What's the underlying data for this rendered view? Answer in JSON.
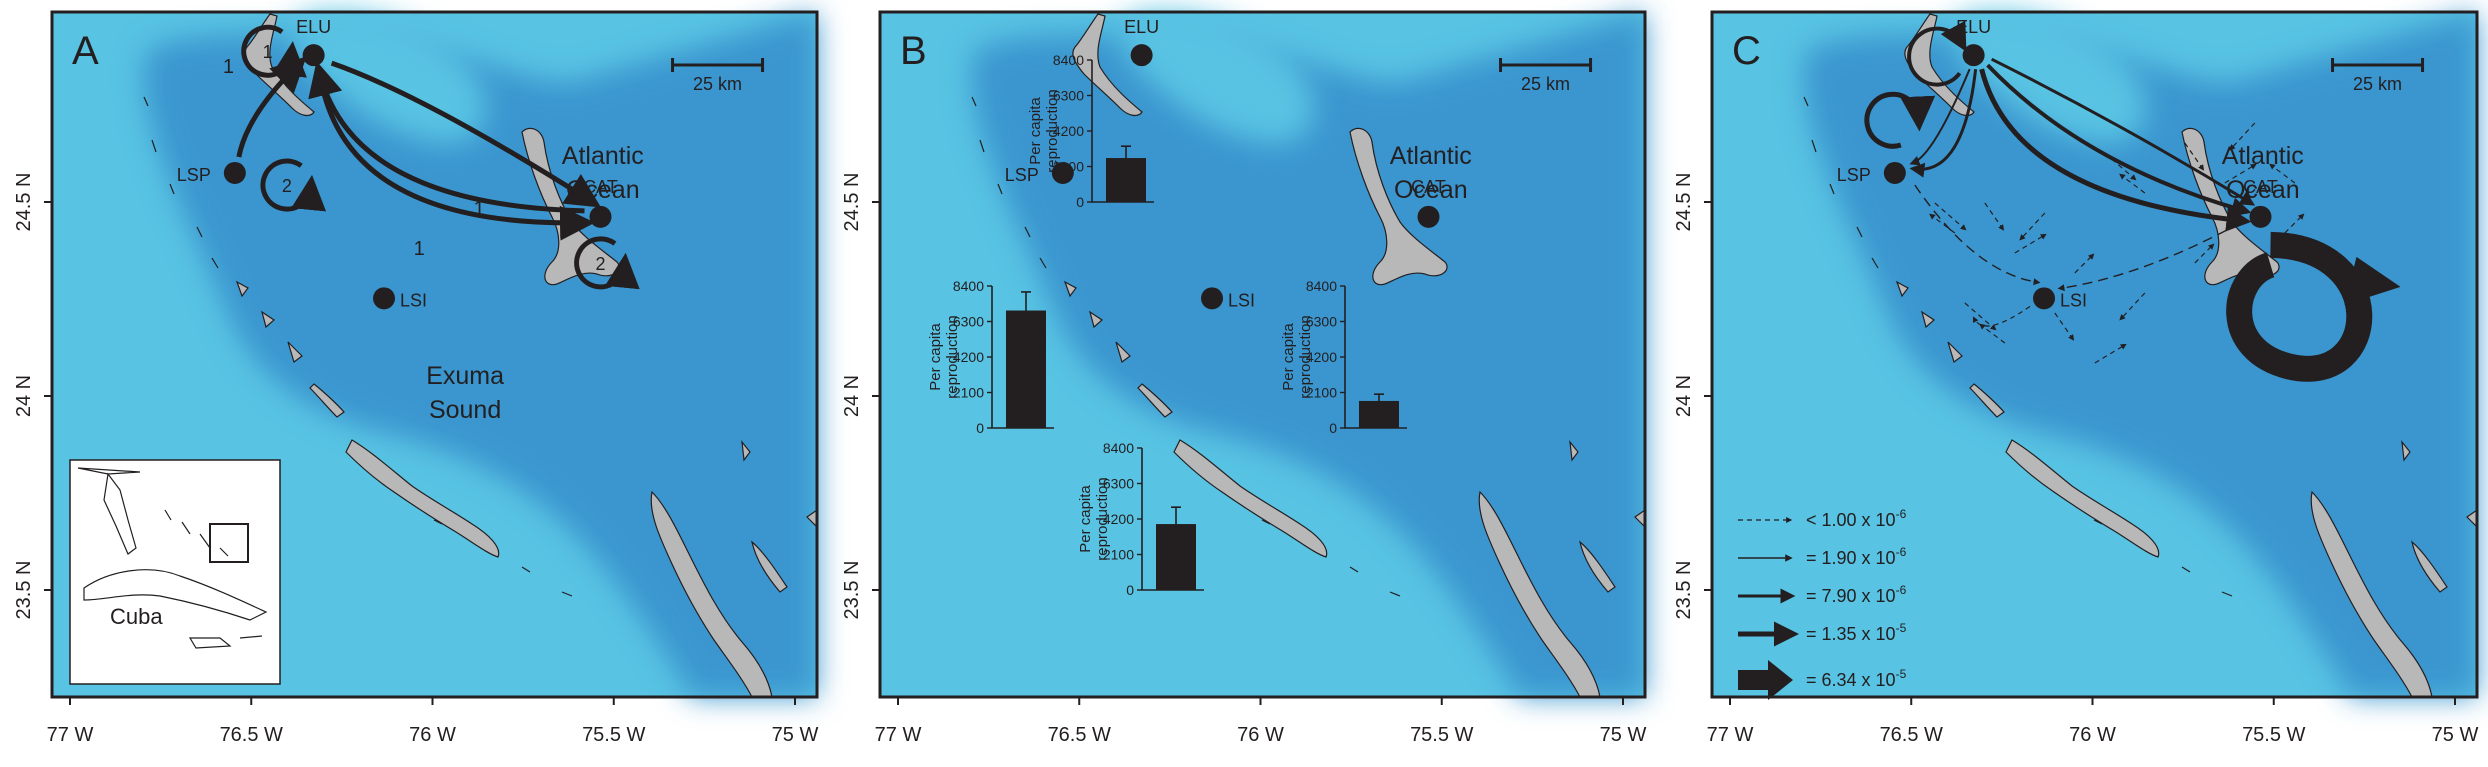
{
  "panels": [
    {
      "letter": "A",
      "ocean_label": [
        "Atlantic",
        "Ocean"
      ],
      "sound_label": [
        "Exuma",
        "Sound"
      ],
      "scale_label": "25 km",
      "inset_label": "Cuba",
      "self_loop_labels": {
        "ELU": "1",
        "LSP": "2",
        "CAT": "2"
      },
      "edge_labels": {
        "LSP_ELU": "1",
        "CAT_ELU_upper": "1",
        "CAT_ELU_lower": "1"
      }
    },
    {
      "letter": "B",
      "ocean_label": [
        "Atlantic",
        "Ocean"
      ],
      "scale_label": "25 km",
      "bar_axis_title": [
        "Per capita",
        "reproduction"
      ],
      "bar_ticks": [
        "0",
        "2100",
        "4200",
        "6300",
        "8400"
      ],
      "bars": {
        "ELU": {
          "value": 2600,
          "error": 700
        },
        "LSP": {
          "value": 6950,
          "error": 1100
        },
        "CAT": {
          "value": 1600,
          "error": 400
        },
        "LSI": {
          "value": 3900,
          "error": 1000
        }
      }
    },
    {
      "letter": "C",
      "ocean_label": [
        "Atlantic",
        "Ocean"
      ],
      "scale_label": "25 km",
      "legend": [
        {
          "label": "< 1.00 x 10",
          "exp": "-6"
        },
        {
          "label": "= 1.90 x 10",
          "exp": "-6"
        },
        {
          "label": "= 7.90 x 10",
          "exp": "-6"
        },
        {
          "label": "= 1.35 x 10",
          "exp": "-5"
        },
        {
          "label": "= 6.34 x 10",
          "exp": "-5"
        }
      ]
    }
  ],
  "sites": [
    "ELU",
    "LSP",
    "CAT",
    "LSI"
  ],
  "x_ticks": [
    "77  W",
    "76.5  W",
    "76  W",
    "75.5  W",
    "75  W"
  ],
  "y_ticks": [
    "24.5  N",
    "24  N",
    "23.5  N"
  ],
  "colors": {
    "shallow_water": "#58c3e3",
    "deep_water": "#3b96cf",
    "land": "#b8b8b8",
    "arrow": "#231f20",
    "bar": "#231f20",
    "frame": "#231f20"
  }
}
